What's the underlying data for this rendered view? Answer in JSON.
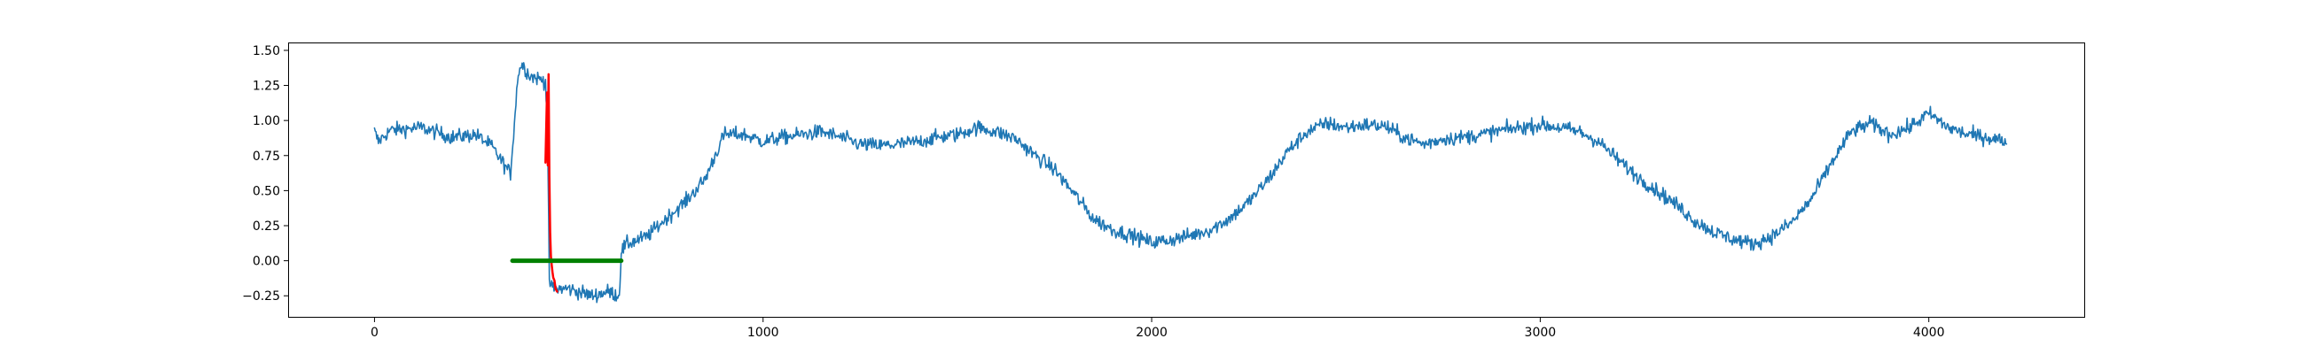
{
  "chart_data": {
    "type": "line",
    "title": "",
    "xlabel": "",
    "ylabel": "",
    "xlim": [
      -220,
      4400
    ],
    "ylim": [
      -0.4,
      1.55
    ],
    "grid": false,
    "x_ticks": [
      0,
      1000,
      2000,
      3000,
      4000
    ],
    "y_ticks": [
      -0.25,
      0.0,
      0.25,
      0.5,
      0.75,
      1.0,
      1.25,
      1.5
    ],
    "x_tick_labels": [
      "0",
      "1000",
      "2000",
      "3000",
      "4000"
    ],
    "y_tick_labels": [
      "−0.25",
      "0.00",
      "0.25",
      "0.50",
      "0.75",
      "1.00",
      "1.25",
      "1.50"
    ],
    "series": [
      {
        "color": "#1f77b4",
        "style": "noisy-line",
        "noise": 0.045,
        "x": [
          0,
          10,
          40,
          120,
          200,
          260,
          300,
          350,
          370,
          380,
          400,
          440,
          445,
          450,
          460,
          500,
          560,
          600,
          630,
          635,
          650,
          700,
          750,
          800,
          850,
          900,
          950,
          1000,
          1050,
          1100,
          1150,
          1200,
          1250,
          1300,
          1350,
          1400,
          1450,
          1500,
          1550,
          1600,
          1650,
          1700,
          1750,
          1800,
          1850,
          1900,
          1950,
          2000,
          2050,
          2100,
          2150,
          2200,
          2250,
          2300,
          2350,
          2400,
          2450,
          2500,
          2550,
          2600,
          2650,
          2700,
          2750,
          2800,
          2850,
          2900,
          2950,
          3000,
          3050,
          3100,
          3150,
          3200,
          3250,
          3300,
          3350,
          3400,
          3450,
          3500,
          3550,
          3600,
          3650,
          3700,
          3750,
          3800,
          3850,
          3900,
          3950,
          4000,
          4050,
          4100,
          4150,
          4200
        ],
        "y": [
          0.92,
          0.85,
          0.93,
          0.95,
          0.88,
          0.9,
          0.82,
          0.62,
          1.35,
          1.4,
          1.32,
          1.28,
          1.0,
          -0.15,
          -0.2,
          -0.2,
          -0.25,
          -0.22,
          -0.25,
          0.07,
          0.12,
          0.17,
          0.3,
          0.42,
          0.58,
          0.9,
          0.9,
          0.85,
          0.88,
          0.9,
          0.92,
          0.88,
          0.83,
          0.82,
          0.83,
          0.85,
          0.88,
          0.9,
          0.95,
          0.92,
          0.87,
          0.75,
          0.65,
          0.48,
          0.3,
          0.22,
          0.18,
          0.13,
          0.15,
          0.18,
          0.22,
          0.3,
          0.42,
          0.58,
          0.78,
          0.92,
          0.98,
          0.95,
          0.97,
          0.96,
          0.88,
          0.83,
          0.87,
          0.88,
          0.9,
          0.93,
          0.95,
          0.97,
          0.95,
          0.92,
          0.85,
          0.72,
          0.6,
          0.5,
          0.4,
          0.28,
          0.2,
          0.15,
          0.12,
          0.18,
          0.28,
          0.45,
          0.7,
          0.92,
          0.98,
          0.9,
          0.95,
          1.05,
          0.95,
          0.9,
          0.88,
          0.85
        ]
      },
      {
        "color": "#ff0000",
        "style": "line",
        "x": [
          440,
          444,
          446,
          448,
          450,
          452,
          454,
          456,
          458,
          460,
          463,
          466,
          470
        ],
        "y": [
          0.7,
          1.2,
          0.68,
          1.33,
          0.6,
          0.2,
          0.03,
          -0.03,
          -0.08,
          -0.12,
          -0.14,
          -0.2,
          -0.22
        ]
      },
      {
        "color": "#008000",
        "style": "thick-line",
        "x": [
          355,
          635
        ],
        "y": [
          0.0,
          0.0
        ]
      }
    ]
  }
}
